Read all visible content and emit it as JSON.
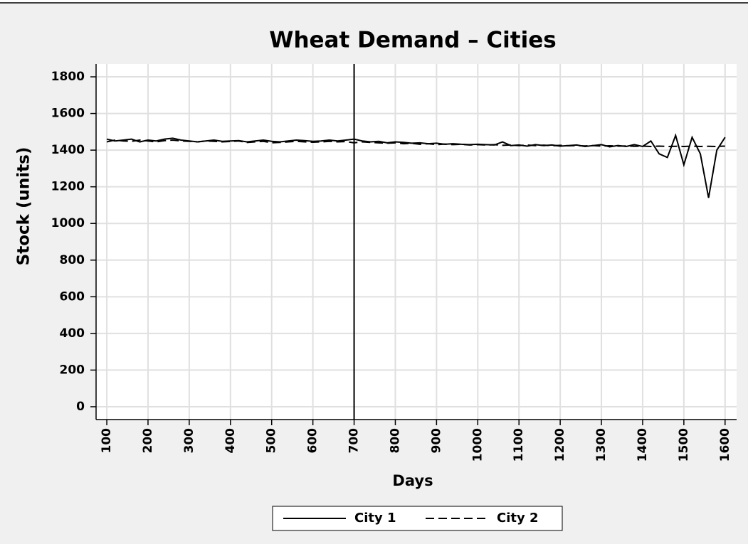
{
  "chart_data": {
    "type": "line",
    "title": "Wheat Demand – Cities",
    "xlabel": "Days",
    "ylabel": "Stock (units)",
    "x": [
      100,
      120,
      140,
      160,
      180,
      200,
      220,
      240,
      260,
      280,
      300,
      320,
      340,
      360,
      380,
      400,
      420,
      440,
      460,
      480,
      500,
      520,
      540,
      560,
      580,
      600,
      620,
      640,
      660,
      680,
      700,
      720,
      740,
      760,
      780,
      800,
      820,
      840,
      860,
      880,
      900,
      920,
      940,
      960,
      980,
      1000,
      1020,
      1040,
      1060,
      1080,
      1100,
      1120,
      1140,
      1160,
      1180,
      1200,
      1220,
      1240,
      1260,
      1280,
      1300,
      1320,
      1340,
      1360,
      1380,
      1400,
      1420,
      1440,
      1460,
      1480,
      1500,
      1520,
      1540,
      1560,
      1580,
      1600
    ],
    "series": [
      {
        "name": "City 1",
        "color": "#000000",
        "line_style": "solid",
        "values": [
          1460,
          1450,
          1455,
          1460,
          1445,
          1455,
          1450,
          1460,
          1465,
          1455,
          1450,
          1445,
          1450,
          1455,
          1448,
          1450,
          1452,
          1445,
          1450,
          1455,
          1448,
          1445,
          1450,
          1455,
          1452,
          1448,
          1450,
          1455,
          1450,
          1455,
          1460,
          1450,
          1445,
          1448,
          1440,
          1445,
          1442,
          1438,
          1440,
          1435,
          1438,
          1432,
          1435,
          1432,
          1430,
          1432,
          1430,
          1428,
          1445,
          1425,
          1428,
          1422,
          1430,
          1425,
          1428,
          1422,
          1425,
          1428,
          1420,
          1425,
          1430,
          1418,
          1425,
          1420,
          1430,
          1420,
          1450,
          1380,
          1360,
          1480,
          1320,
          1470,
          1380,
          1140,
          1400,
          1470
        ]
      },
      {
        "name": "City 2",
        "color": "#000000",
        "line_style": "dashed",
        "values": [
          1445,
          1455,
          1450,
          1448,
          1455,
          1450,
          1445,
          1452,
          1455,
          1450,
          1448,
          1445,
          1450,
          1448,
          1445,
          1447,
          1450,
          1442,
          1445,
          1448,
          1440,
          1442,
          1445,
          1448,
          1445,
          1443,
          1445,
          1448,
          1445,
          1447,
          1440,
          1445,
          1442,
          1440,
          1438,
          1440,
          1435,
          1437,
          1432,
          1435,
          1430,
          1433,
          1430,
          1432,
          1428,
          1430,
          1428,
          1430,
          1426,
          1428,
          1425,
          1428,
          1425,
          1427,
          1424,
          1426,
          1424,
          1425,
          1423,
          1425,
          1422,
          1424,
          1422,
          1423,
          1421,
          1422,
          1420,
          1422,
          1420,
          1421,
          1420,
          1422,
          1420,
          1421,
          1420,
          1422
        ]
      }
    ],
    "vline": 700,
    "xlim": [
      74,
      1628
    ],
    "ylim": [
      -70,
      1870
    ],
    "xticks": [
      100,
      200,
      300,
      400,
      500,
      600,
      700,
      800,
      900,
      1000,
      1100,
      1200,
      1300,
      1400,
      1500,
      1600
    ],
    "yticks": [
      0,
      200,
      400,
      600,
      800,
      1000,
      1200,
      1400,
      1600,
      1800
    ],
    "grid": true,
    "legend": "bottom"
  }
}
